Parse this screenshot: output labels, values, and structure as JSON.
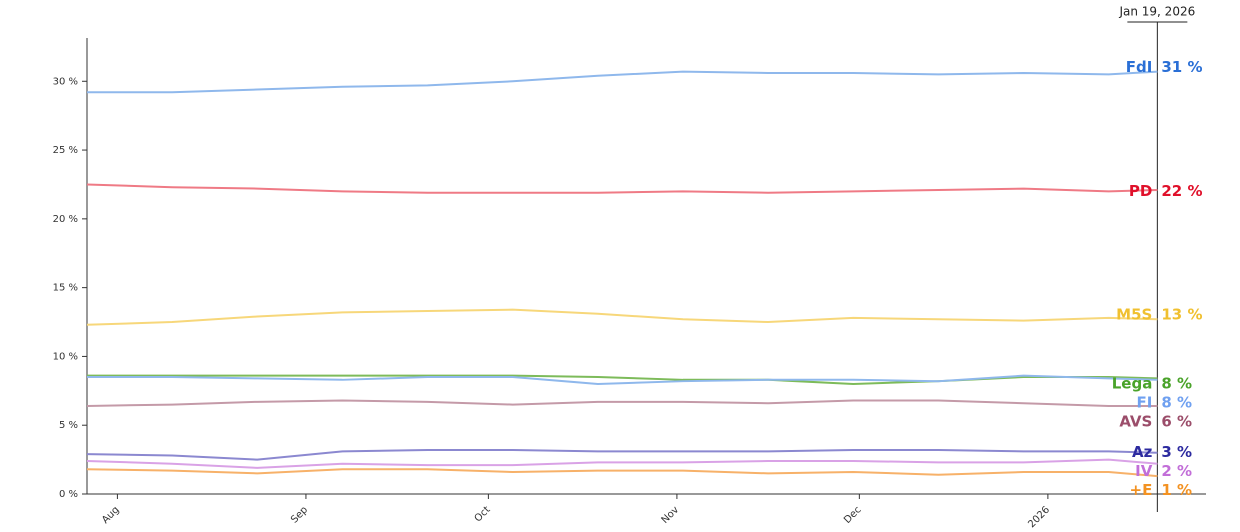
{
  "chart_data": {
    "type": "line",
    "x": [
      "2025-07-27",
      "2025-08-10",
      "2025-08-24",
      "2025-09-07",
      "2025-09-21",
      "2025-10-05",
      "2025-10-19",
      "2025-11-02",
      "2025-11-16",
      "2025-11-30",
      "2025-12-14",
      "2025-12-28",
      "2026-01-11",
      "2026-01-19"
    ],
    "xlim": [
      "2025-07-27",
      "2026-01-27"
    ],
    "xticks": [
      {
        "value": "2025-08-01",
        "label": "Aug"
      },
      {
        "value": "2025-09-01",
        "label": "Sep"
      },
      {
        "value": "2025-10-01",
        "label": "Oct"
      },
      {
        "value": "2025-11-01",
        "label": "Nov"
      },
      {
        "value": "2025-12-01",
        "label": "Dec"
      },
      {
        "value": "2026-01-01",
        "label": "2026"
      }
    ],
    "ylim": [
      0,
      33
    ],
    "yticks": [
      {
        "value": 0,
        "label": "0 %"
      },
      {
        "value": 5,
        "label": "5 %"
      },
      {
        "value": 10,
        "label": "10 %"
      },
      {
        "value": 15,
        "label": "15 %"
      },
      {
        "value": 20,
        "label": "20 %"
      },
      {
        "value": 25,
        "label": "25 %"
      },
      {
        "value": 30,
        "label": "30 %"
      }
    ],
    "cursor": {
      "value": "2026-01-19",
      "label": "Jan 19, 2026"
    },
    "series": [
      {
        "name": "FdI",
        "color": "#8fb8ec",
        "label_color": "#2a6fd6",
        "values": [
          29.2,
          29.2,
          29.4,
          29.6,
          29.7,
          30.0,
          30.4,
          30.7,
          30.6,
          30.6,
          30.5,
          30.6,
          30.5,
          30.7
        ],
        "current": {
          "value": 31,
          "label": "31 %"
        }
      },
      {
        "name": "PD",
        "color": "#ef7a85",
        "label_color": "#e0102a",
        "values": [
          22.5,
          22.3,
          22.2,
          22.0,
          21.9,
          21.9,
          21.9,
          22.0,
          21.9,
          22.0,
          22.1,
          22.2,
          22.0,
          22.1
        ],
        "current": {
          "value": 22,
          "label": "22 %"
        }
      },
      {
        "name": "M5S",
        "color": "#f7d77a",
        "label_color": "#f0c030",
        "values": [
          12.3,
          12.5,
          12.9,
          13.2,
          13.3,
          13.4,
          13.1,
          12.7,
          12.5,
          12.8,
          12.7,
          12.6,
          12.8,
          12.7
        ],
        "current": {
          "value": 13,
          "label": "13 %"
        }
      },
      {
        "name": "Lega",
        "color": "#7dbb5a",
        "label_color": "#4aa32a",
        "values": [
          8.6,
          8.6,
          8.6,
          8.6,
          8.6,
          8.6,
          8.5,
          8.3,
          8.3,
          8.0,
          8.2,
          8.5,
          8.5,
          8.4
        ],
        "current": {
          "value": 8,
          "label": "8 %"
        }
      },
      {
        "name": "FI",
        "color": "#8fb8ec",
        "label_color": "#6fa0f0",
        "values": [
          8.5,
          8.5,
          8.4,
          8.3,
          8.5,
          8.5,
          8.0,
          8.2,
          8.3,
          8.3,
          8.2,
          8.6,
          8.4,
          8.3
        ],
        "current": {
          "value": 8,
          "label": "8 %"
        }
      },
      {
        "name": "AVS",
        "color": "#c49aa8",
        "label_color": "#9b4d6a",
        "values": [
          6.4,
          6.5,
          6.7,
          6.8,
          6.7,
          6.5,
          6.7,
          6.7,
          6.6,
          6.8,
          6.8,
          6.6,
          6.4,
          6.4
        ],
        "current": {
          "value": 6,
          "label": "6 %"
        }
      },
      {
        "name": "Az",
        "color": "#8b88d0",
        "label_color": "#2d2ba0",
        "values": [
          2.9,
          2.8,
          2.5,
          3.1,
          3.2,
          3.2,
          3.1,
          3.1,
          3.1,
          3.2,
          3.2,
          3.1,
          3.1,
          3.0
        ],
        "current": {
          "value": 3,
          "label": "3 %"
        }
      },
      {
        "name": "IV",
        "color": "#d9a2e6",
        "label_color": "#c26ed8",
        "values": [
          2.4,
          2.2,
          1.9,
          2.2,
          2.1,
          2.1,
          2.3,
          2.3,
          2.4,
          2.4,
          2.3,
          2.3,
          2.5,
          2.2
        ],
        "current": {
          "value": 2,
          "label": "2 %"
        }
      },
      {
        "name": "+E",
        "color": "#f7b169",
        "label_color": "#f39222",
        "values": [
          1.8,
          1.7,
          1.5,
          1.8,
          1.8,
          1.6,
          1.7,
          1.7,
          1.5,
          1.6,
          1.4,
          1.6,
          1.6,
          1.3
        ],
        "current": {
          "value": 1,
          "label": "1 %"
        }
      }
    ]
  }
}
